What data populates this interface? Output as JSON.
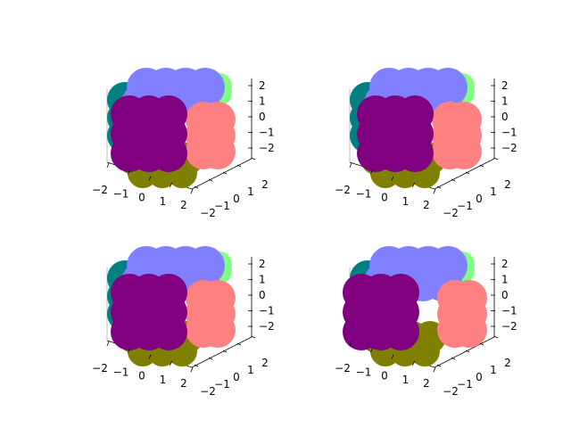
{
  "chart_data": {
    "type": "scatter",
    "subtype": "3d-cube-of-spheres",
    "panel_count": 4,
    "layout": "2x2 grid",
    "grid": false,
    "legend": "none",
    "xlim": [
      -2,
      2
    ],
    "ylim": [
      -2,
      2
    ],
    "zlim": [
      -2,
      2
    ],
    "x_ticks": [
      "−2",
      "−1",
      "0",
      "1",
      "2"
    ],
    "y_ticks": [
      "−2",
      "−1",
      "0",
      "1",
      "2"
    ],
    "z_ticks": [
      "−2",
      "−1",
      "0",
      "1",
      "2"
    ],
    "face_colors": {
      "top": "#8080ff",
      "front": "#800080",
      "right": "#ff8080",
      "back": "#008080",
      "left_back": "#80ff80",
      "bottom": "#808000"
    },
    "panels": [
      {
        "view": "top-left"
      },
      {
        "view": "top-right"
      },
      {
        "view": "bottom-left"
      },
      {
        "view": "bottom-right"
      }
    ]
  }
}
